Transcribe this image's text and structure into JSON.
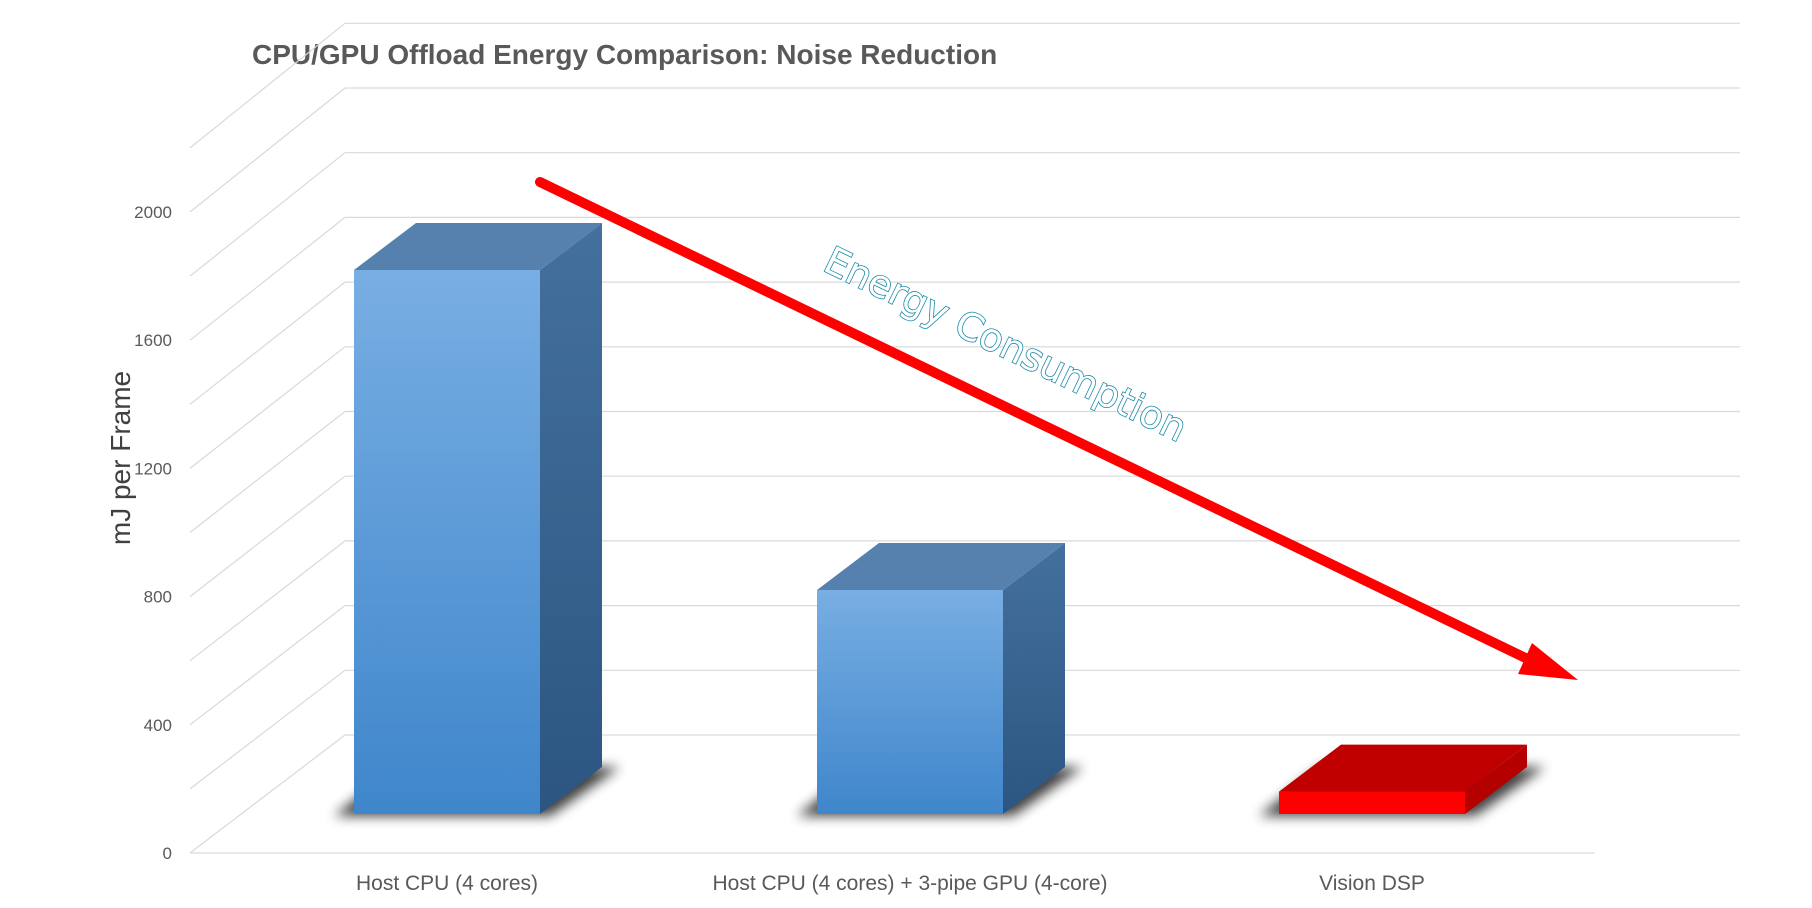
{
  "chart_data": {
    "type": "bar",
    "title": "CPU/GPU Offload Energy Comparison:  Noise Reduction",
    "ylabel": "mJ per Frame",
    "xlabel": "",
    "ylim": [
      0,
      2000
    ],
    "yticks": [
      0,
      400,
      800,
      1200,
      1600,
      2000
    ],
    "grid": true,
    "categories": [
      "Host CPU (4 cores)",
      "Host CPU (4 cores) + 3-pipe GPU (4-core)",
      "Vision DSP"
    ],
    "values": [
      1700,
      700,
      70
    ],
    "bar_colors": [
      "#5b9bd5",
      "#5b9bd5",
      "#ff0000"
    ],
    "annotation": {
      "text": "Energy Consumption",
      "arrow_color": "#ff0000",
      "text_color": "#1b8aa8"
    }
  }
}
